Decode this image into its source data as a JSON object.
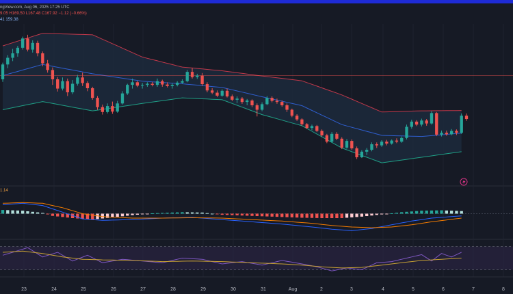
{
  "header": {
    "source_line": "ngView.com, Aug 06, 2025 17:25 UTC",
    "ohlc_line": "9.05  H169.50  L167.48  C167.92  −1.12 (−0.66%)",
    "bb_line": "41   159.38"
  },
  "macd_label": "1.14",
  "colors": {
    "background": "#161a25",
    "up": "#26a69a",
    "down": "#ef5350",
    "bb_upper": "#c2384a",
    "bb_basis": "#2f5fd0",
    "bb_lower": "#1fa187",
    "bb_fill": "#1c2a3c",
    "macd_line": "#2962ff",
    "signal_line": "#f57c00",
    "rsi_line": "#7e57c2",
    "rsi_ma": "#c8a233",
    "rsi_band": "#2a2440",
    "alert_icon": "#d63384"
  },
  "icons": {
    "alert": "lightning-icon"
  },
  "chart_data": [
    {
      "type": "candlestick",
      "title": "",
      "x_tick_labels": [
        "23",
        "24",
        "25",
        "26",
        "27",
        "28",
        "29",
        "30",
        "31",
        "Aug",
        "2",
        "3",
        "4",
        "5",
        "6",
        "7",
        "8"
      ],
      "ylim": [
        140,
        182
      ],
      "price_line": 169.0,
      "candles": [
        [
          168.0,
          172.5,
          167.3,
          172.0
        ],
        [
          172.0,
          174.5,
          171.0,
          173.8
        ],
        [
          173.8,
          176.2,
          172.9,
          175.0
        ],
        [
          175.0,
          177.0,
          174.1,
          176.5
        ],
        [
          176.5,
          179.5,
          176.0,
          179.0
        ],
        [
          179.0,
          180.0,
          175.5,
          176.0
        ],
        [
          176.0,
          178.5,
          175.2,
          177.8
        ],
        [
          177.8,
          178.4,
          174.2,
          175.0
        ],
        [
          175.0,
          175.5,
          171.5,
          172.3
        ],
        [
          172.3,
          173.2,
          169.8,
          170.5
        ],
        [
          170.5,
          171.2,
          166.5,
          168.0
        ],
        [
          168.0,
          168.6,
          164.7,
          165.5
        ],
        [
          165.5,
          168.5,
          165.0,
          167.5
        ],
        [
          167.5,
          168.2,
          163.5,
          164.5
        ],
        [
          164.5,
          167.8,
          164.0,
          166.8
        ],
        [
          166.8,
          169.2,
          166.3,
          168.5
        ],
        [
          168.5,
          169.8,
          166.2,
          167.0
        ],
        [
          167.0,
          167.5,
          164.8,
          165.6
        ],
        [
          165.6,
          166.0,
          162.5,
          163.0
        ],
        [
          163.0,
          163.5,
          159.8,
          160.5
        ],
        [
          160.5,
          161.2,
          158.5,
          159.2
        ],
        [
          159.2,
          161.5,
          158.8,
          160.8
        ],
        [
          160.8,
          162.0,
          158.7,
          159.3
        ],
        [
          159.3,
          162.2,
          159.0,
          161.5
        ],
        [
          161.5,
          164.8,
          161.2,
          164.2
        ],
        [
          164.2,
          166.8,
          163.8,
          166.5
        ],
        [
          166.5,
          168.2,
          165.5,
          167.2
        ],
        [
          167.2,
          167.6,
          165.9,
          166.3
        ],
        [
          166.3,
          167.0,
          165.5,
          166.5
        ],
        [
          166.5,
          167.2,
          166.0,
          166.8
        ],
        [
          166.8,
          167.3,
          166.1,
          166.5
        ],
        [
          166.5,
          168.2,
          166.0,
          167.5
        ],
        [
          167.5,
          167.9,
          166.0,
          166.6
        ],
        [
          166.6,
          167.2,
          165.8,
          166.2
        ],
        [
          166.2,
          166.9,
          165.5,
          166.5
        ],
        [
          166.5,
          167.5,
          166.1,
          167.1
        ],
        [
          167.1,
          168.0,
          166.8,
          167.5
        ],
        [
          167.5,
          170.5,
          167.2,
          170.0
        ],
        [
          170.0,
          171.0,
          168.2,
          168.6
        ],
        [
          168.6,
          169.5,
          168.1,
          169.0
        ],
        [
          169.0,
          169.7,
          166.2,
          166.7
        ],
        [
          166.7,
          167.2,
          164.5,
          165.0
        ],
        [
          165.0,
          165.6,
          164.0,
          164.4
        ],
        [
          164.4,
          165.0,
          163.2,
          163.6
        ],
        [
          163.6,
          165.3,
          163.3,
          164.9
        ],
        [
          164.9,
          165.5,
          163.1,
          163.4
        ],
        [
          163.4,
          163.9,
          162.1,
          162.5
        ],
        [
          162.5,
          163.4,
          161.6,
          162.8
        ],
        [
          162.8,
          163.2,
          161.4,
          161.9
        ],
        [
          161.9,
          162.7,
          161.0,
          162.3
        ],
        [
          162.3,
          162.6,
          160.5,
          161.0
        ],
        [
          161.0,
          161.5,
          158.0,
          159.8
        ],
        [
          159.8,
          161.8,
          159.4,
          161.3
        ],
        [
          161.3,
          163.5,
          161.0,
          163.0
        ],
        [
          163.0,
          163.4,
          161.8,
          162.2
        ],
        [
          162.2,
          162.8,
          161.4,
          161.9
        ],
        [
          161.9,
          162.3,
          160.6,
          161.0
        ],
        [
          161.0,
          161.5,
          159.2,
          159.8
        ],
        [
          159.8,
          160.1,
          157.8,
          158.2
        ],
        [
          158.2,
          158.6,
          156.8,
          157.2
        ],
        [
          157.2,
          157.5,
          155.5,
          155.9
        ],
        [
          155.9,
          156.2,
          154.6,
          154.9
        ],
        [
          154.9,
          155.8,
          154.3,
          155.4
        ],
        [
          155.4,
          155.7,
          153.8,
          154.1
        ],
        [
          154.1,
          154.5,
          152.6,
          152.9
        ],
        [
          152.9,
          153.3,
          150.8,
          151.2
        ],
        [
          151.2,
          153.8,
          150.9,
          153.3
        ],
        [
          153.3,
          153.8,
          151.6,
          152.0
        ],
        [
          152.0,
          152.4,
          149.2,
          149.6
        ],
        [
          149.6,
          151.9,
          149.3,
          151.4
        ],
        [
          151.4,
          151.8,
          149.0,
          149.4
        ],
        [
          149.4,
          149.9,
          146.5,
          147.0
        ],
        [
          147.0,
          148.9,
          146.8,
          148.5
        ],
        [
          148.5,
          149.5,
          147.6,
          149.0
        ],
        [
          149.0,
          151.0,
          148.6,
          150.5
        ],
        [
          150.5,
          151.0,
          149.5,
          150.2
        ],
        [
          150.2,
          151.6,
          149.8,
          151.2
        ],
        [
          151.2,
          151.7,
          150.2,
          150.7
        ],
        [
          150.7,
          151.8,
          150.4,
          151.5
        ],
        [
          151.5,
          152.1,
          150.8,
          151.2
        ],
        [
          151.2,
          152.6,
          150.9,
          152.2
        ],
        [
          152.2,
          155.8,
          151.8,
          155.2
        ],
        [
          155.2,
          157.1,
          154.7,
          156.6
        ],
        [
          156.6,
          157.0,
          155.4,
          155.8
        ],
        [
          155.8,
          157.4,
          155.3,
          156.9
        ],
        [
          156.9,
          157.3,
          155.5,
          156.1
        ],
        [
          156.1,
          159.4,
          155.8,
          158.9
        ],
        [
          158.9,
          159.2,
          152.7,
          153.1
        ],
        [
          153.1,
          154.2,
          152.6,
          153.6
        ],
        [
          153.6,
          154.2,
          152.8,
          153.2
        ],
        [
          153.2,
          154.6,
          152.9,
          154.1
        ],
        [
          154.1,
          154.5,
          153.0,
          153.6
        ],
        [
          153.6,
          158.8,
          153.3,
          158.2
        ],
        [
          158.2,
          158.8,
          156.8,
          157.3
        ]
      ],
      "bollinger": {
        "upper": [
          [
            0,
            177.0
          ],
          [
            8,
            180.4
          ],
          [
            18,
            180.0
          ],
          [
            28,
            174.0
          ],
          [
            36,
            171.3
          ],
          [
            44,
            170.3
          ],
          [
            52,
            168.9
          ],
          [
            60,
            167.6
          ],
          [
            68,
            163.8
          ],
          [
            76,
            159.2
          ],
          [
            84,
            159.5
          ],
          [
            92,
            159.6
          ]
        ],
        "basis": [
          [
            0,
            169.0
          ],
          [
            8,
            172.0
          ],
          [
            18,
            169.5
          ],
          [
            28,
            167.5
          ],
          [
            36,
            166.8
          ],
          [
            44,
            165.8
          ],
          [
            52,
            163.3
          ],
          [
            60,
            160.9
          ],
          [
            68,
            155.8
          ],
          [
            76,
            152.9
          ],
          [
            84,
            152.6
          ],
          [
            92,
            153.5
          ]
        ],
        "lower": [
          [
            0,
            159.8
          ],
          [
            8,
            162.0
          ],
          [
            18,
            159.5
          ],
          [
            28,
            161.5
          ],
          [
            36,
            163.0
          ],
          [
            44,
            162.5
          ],
          [
            52,
            158.5
          ],
          [
            60,
            155.5
          ],
          [
            68,
            149.5
          ],
          [
            76,
            145.5
          ],
          [
            84,
            147.0
          ],
          [
            92,
            148.5
          ]
        ]
      }
    },
    {
      "type": "bar",
      "series": [
        {
          "role": "histogram",
          "values": [
            [
              0,
              0.5
            ],
            [
              4,
              0.4
            ],
            [
              8,
              0.1
            ],
            [
              10,
              -0.3
            ],
            [
              14,
              -0.6
            ],
            [
              18,
              -0.8
            ],
            [
              22,
              -0.5
            ],
            [
              26,
              -0.2
            ],
            [
              30,
              0.05
            ],
            [
              36,
              0.2
            ],
            [
              40,
              0.15
            ],
            [
              44,
              -0.15
            ],
            [
              50,
              -0.3
            ],
            [
              56,
              -0.45
            ],
            [
              60,
              -0.55
            ],
            [
              64,
              -0.6
            ],
            [
              68,
              -0.6
            ],
            [
              72,
              -0.4
            ],
            [
              76,
              -0.1
            ],
            [
              80,
              0.2
            ],
            [
              84,
              0.4
            ],
            [
              88,
              0.45
            ],
            [
              92,
              0.35
            ]
          ]
        },
        {
          "role": "macd",
          "values": [
            [
              0,
              1.2
            ],
            [
              4,
              1.4
            ],
            [
              8,
              1.1
            ],
            [
              12,
              0.2
            ],
            [
              16,
              -0.7
            ],
            [
              20,
              -0.9
            ],
            [
              26,
              -0.8
            ],
            [
              32,
              -0.6
            ],
            [
              38,
              -0.5
            ],
            [
              44,
              -0.8
            ],
            [
              50,
              -1.1
            ],
            [
              56,
              -1.4
            ],
            [
              62,
              -1.8
            ],
            [
              66,
              -2.1
            ],
            [
              70,
              -2.3
            ],
            [
              74,
              -2.0
            ],
            [
              78,
              -1.5
            ],
            [
              82,
              -1.0
            ],
            [
              86,
              -0.6
            ],
            [
              92,
              -0.3
            ]
          ]
        },
        {
          "role": "signal",
          "values": [
            [
              0,
              1.4
            ],
            [
              4,
              1.5
            ],
            [
              8,
              1.4
            ],
            [
              12,
              0.8
            ],
            [
              16,
              0.0
            ],
            [
              20,
              -0.4
            ],
            [
              26,
              -0.6
            ],
            [
              32,
              -0.6
            ],
            [
              38,
              -0.55
            ],
            [
              44,
              -0.6
            ],
            [
              50,
              -0.8
            ],
            [
              56,
              -1.0
            ],
            [
              62,
              -1.3
            ],
            [
              66,
              -1.6
            ],
            [
              70,
              -1.8
            ],
            [
              74,
              -1.9
            ],
            [
              78,
              -1.8
            ],
            [
              82,
              -1.5
            ],
            [
              86,
              -1.1
            ],
            [
              92,
              -0.6
            ]
          ]
        }
      ],
      "ylim": [
        -3,
        3
      ]
    },
    {
      "type": "line",
      "series": [
        {
          "role": "rsi",
          "values": [
            [
              0,
              55
            ],
            [
              2,
              60
            ],
            [
              5,
              68
            ],
            [
              8,
              52
            ],
            [
              11,
              60
            ],
            [
              14,
              45
            ],
            [
              17,
              55
            ],
            [
              20,
              42
            ],
            [
              24,
              48
            ],
            [
              28,
              45
            ],
            [
              32,
              42
            ],
            [
              36,
              50
            ],
            [
              40,
              48
            ],
            [
              44,
              40
            ],
            [
              48,
              44
            ],
            [
              52,
              38
            ],
            [
              56,
              46
            ],
            [
              60,
              40
            ],
            [
              63,
              35
            ],
            [
              66,
              28
            ],
            [
              69,
              33
            ],
            [
              72,
              30
            ],
            [
              75,
              42
            ],
            [
              78,
              44
            ],
            [
              81,
              50
            ],
            [
              84,
              56
            ],
            [
              86,
              45
            ],
            [
              88,
              58
            ],
            [
              90,
              52
            ],
            [
              92,
              60
            ]
          ]
        },
        {
          "role": "rsi_ma",
          "values": [
            [
              0,
              60
            ],
            [
              4,
              62
            ],
            [
              8,
              58
            ],
            [
              12,
              52
            ],
            [
              16,
              48
            ],
            [
              20,
              47
            ],
            [
              26,
              46
            ],
            [
              32,
              44
            ],
            [
              38,
              45
            ],
            [
              44,
              44
            ],
            [
              50,
              42
            ],
            [
              56,
              40
            ],
            [
              60,
              38
            ],
            [
              64,
              35
            ],
            [
              68,
              33
            ],
            [
              72,
              34
            ],
            [
              76,
              38
            ],
            [
              80,
              42
            ],
            [
              84,
              46
            ],
            [
              88,
              48
            ],
            [
              92,
              50
            ]
          ]
        }
      ],
      "ylim": [
        20,
        80
      ],
      "band": [
        30,
        70
      ]
    }
  ]
}
